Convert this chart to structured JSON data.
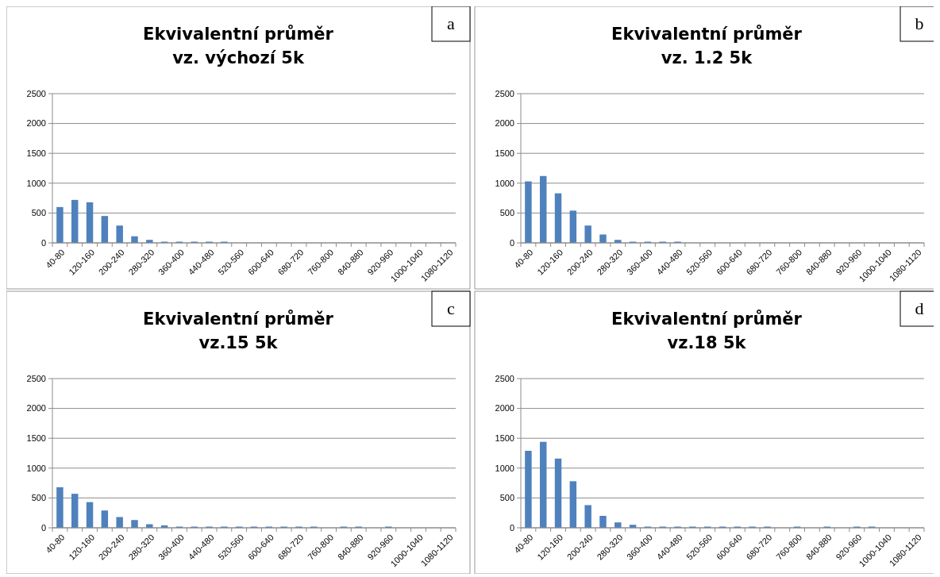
{
  "chart_data": [
    {
      "type": "bar",
      "title": "Ekvivalentní průměr",
      "subtitle": "vz. výchozí 5k",
      "annotations": [
        "a"
      ],
      "categories": [
        "40-80",
        null,
        "120-160",
        null,
        "200-240",
        null,
        "280-320",
        null,
        "360-400",
        null,
        "440-480",
        null,
        "520-560",
        null,
        "600-640",
        null,
        "680-720",
        null,
        "760-800",
        null,
        "840-880",
        null,
        "920-960",
        null,
        "1000-1040",
        null,
        "1080-1120"
      ],
      "values": [
        600,
        720,
        680,
        450,
        290,
        110,
        50,
        20,
        20,
        20,
        20,
        20,
        0,
        0,
        0,
        0,
        0,
        0,
        0,
        0,
        0,
        0,
        0,
        0,
        0,
        0,
        0
      ],
      "color": "#4f81bd",
      "ylim": [
        0,
        2500
      ],
      "yticks": [
        0,
        500,
        1000,
        1500,
        2000,
        2500
      ],
      "grid": "y"
    },
    {
      "type": "bar",
      "title": "Ekvivalentní průměr",
      "subtitle": "vz. 1.2 5k",
      "annotations": [
        "b"
      ],
      "categories": [
        "40-80",
        null,
        "120-160",
        null,
        "200-240",
        null,
        "280-320",
        null,
        "360-400",
        null,
        "440-480",
        null,
        "520-560",
        null,
        "600-640",
        null,
        "680-720",
        null,
        "760-800",
        null,
        "840-880",
        null,
        "920-960",
        null,
        "1000-1040",
        null,
        "1080-1120"
      ],
      "values": [
        1030,
        1120,
        830,
        540,
        290,
        140,
        50,
        20,
        20,
        20,
        20,
        0,
        0,
        0,
        0,
        0,
        0,
        0,
        0,
        0,
        0,
        0,
        0,
        0,
        0,
        0,
        0
      ],
      "color": "#4f81bd",
      "ylim": [
        0,
        2500
      ],
      "yticks": [
        0,
        500,
        1000,
        1500,
        2000,
        2500
      ],
      "grid": "y"
    },
    {
      "type": "bar",
      "title": "Ekvivalentní průměr",
      "subtitle": "vz.15 5k",
      "annotations": [
        "c"
      ],
      "categories": [
        "40-80",
        null,
        "120-160",
        null,
        "200-240",
        null,
        "280-320",
        null,
        "360-400",
        null,
        "440-480",
        null,
        "520-560",
        null,
        "600-640",
        null,
        "680-720",
        null,
        "760-800",
        null,
        "840-880",
        null,
        "920-960",
        null,
        "1000-1040",
        null,
        "1080-1120"
      ],
      "values": [
        680,
        570,
        430,
        290,
        180,
        130,
        60,
        40,
        20,
        20,
        20,
        20,
        20,
        20,
        20,
        20,
        20,
        20,
        0,
        20,
        20,
        0,
        20,
        0,
        0,
        0,
        0
      ],
      "color": "#4f81bd",
      "ylim": [
        0,
        2500
      ],
      "yticks": [
        0,
        500,
        1000,
        1500,
        2000,
        2500
      ],
      "grid": "y"
    },
    {
      "type": "bar",
      "title": "Ekvivalentní průměr",
      "subtitle": "vz.18 5k",
      "annotations": [
        "d"
      ],
      "categories": [
        "40-80",
        null,
        "120-160",
        null,
        "200-240",
        null,
        "280-320",
        null,
        "360-400",
        null,
        "440-480",
        null,
        "520-560",
        null,
        "600-640",
        null,
        "680-720",
        null,
        "760-800",
        null,
        "840-880",
        null,
        "920-960",
        null,
        "1000-1040",
        null,
        "1080-1120"
      ],
      "values": [
        1290,
        1440,
        1160,
        780,
        380,
        200,
        90,
        50,
        20,
        20,
        20,
        20,
        20,
        20,
        20,
        20,
        20,
        0,
        20,
        0,
        20,
        0,
        20,
        20,
        0,
        0,
        0
      ],
      "color": "#4f81bd",
      "ylim": [
        0,
        2500
      ],
      "yticks": [
        0,
        500,
        1000,
        1500,
        2000,
        2500
      ],
      "grid": "y"
    }
  ]
}
